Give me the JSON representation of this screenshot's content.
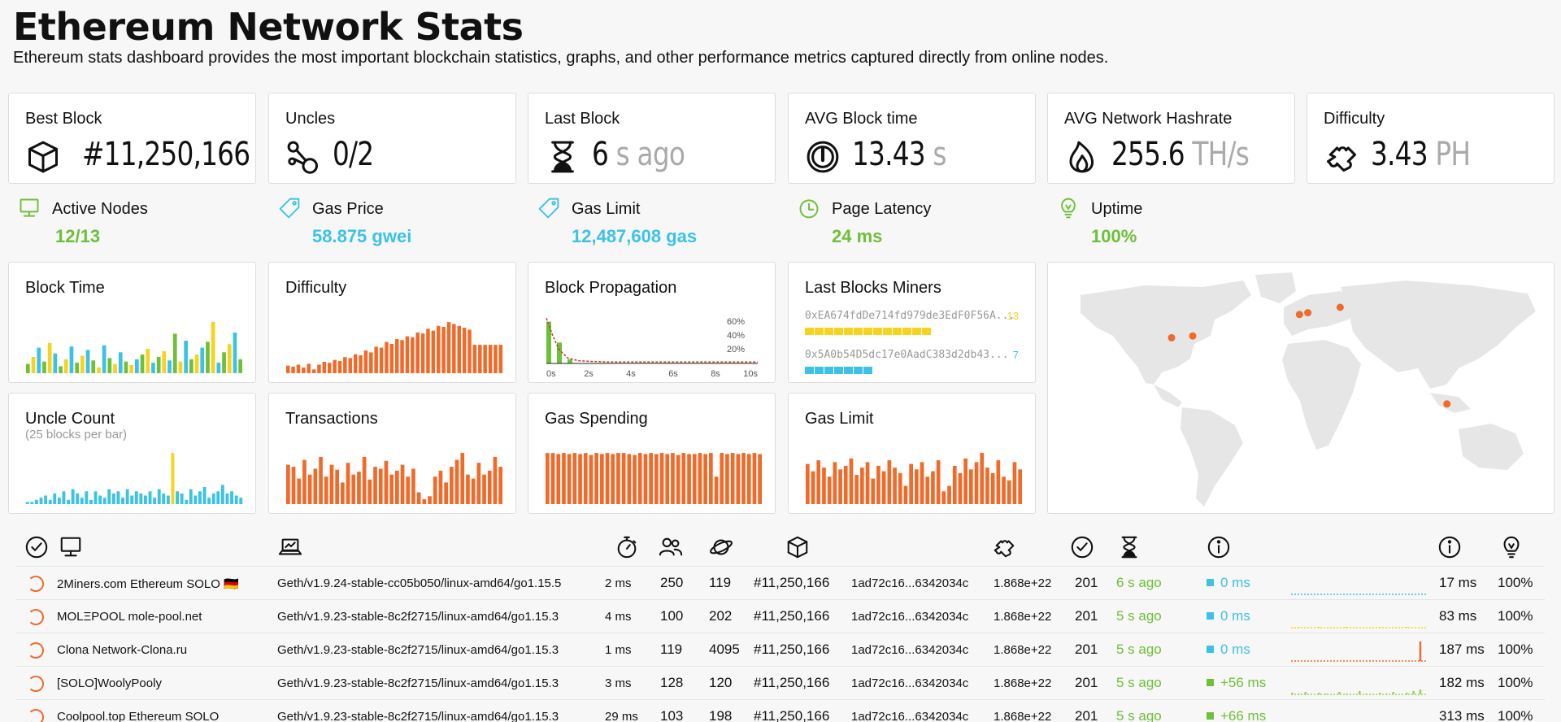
{
  "header": {
    "title": "Ethereum Network Stats",
    "subtitle": "Ethereum stats dashboard provides the most important blockchain statistics, graphs, and other performance metrics captured directly from online nodes."
  },
  "stats": [
    {
      "label": "Best Block",
      "value": "#11,250,166",
      "unit": "",
      "icon": "cube-icon"
    },
    {
      "label": "Uncles",
      "value": "0/2",
      "unit": "",
      "icon": "uncles-icon"
    },
    {
      "label": "Last Block",
      "value": "6",
      "unit": "s ago",
      "icon": "hourglass-icon"
    },
    {
      "label": "AVG Block time",
      "value": "13.43",
      "unit": "s",
      "icon": "gauge-icon"
    },
    {
      "label": "AVG Network Hashrate",
      "value": "255.6",
      "unit": "TH/s",
      "icon": "flame-icon"
    },
    {
      "label": "Difficulty",
      "value": "3.43",
      "unit": "PH",
      "icon": "puzzle-icon"
    }
  ],
  "info": [
    {
      "label": "Active Nodes",
      "value": "12/13",
      "color": "#6ebf3a",
      "icon": "monitor-icon"
    },
    {
      "label": "Gas Price",
      "value": "58.875 gwei",
      "color": "#3dc2e6",
      "icon": "tag-icon"
    },
    {
      "label": "Gas Limit",
      "value": "12,487,608 gas",
      "color": "#3dc2e6",
      "icon": "tag-icon"
    },
    {
      "label": "Page Latency",
      "value": "24 ms",
      "color": "#6ebf3a",
      "icon": "timer-icon"
    },
    {
      "label": "Uptime",
      "value": "100%",
      "color": "#6ebf3a",
      "icon": "bulb-icon"
    }
  ],
  "charts": {
    "block_time": {
      "title": "Block Time"
    },
    "difficulty": {
      "title": "Difficulty"
    },
    "block_propagation": {
      "title": "Block Propagation",
      "x_ticks": [
        "0s",
        "2s",
        "4s",
        "6s",
        "8s",
        "10s"
      ],
      "y_ticks": [
        "60%",
        "40%",
        "20%"
      ]
    },
    "uncle_count": {
      "title": "Uncle Count",
      "note": "(25 blocks per bar)"
    },
    "transactions": {
      "title": "Transactions"
    },
    "gas_spending": {
      "title": "Gas Spending"
    },
    "gas_limit": {
      "title": "Gas Limit"
    }
  },
  "chart_data": [
    {
      "type": "bar",
      "name_ref": "Block Time",
      "values": [
        8,
        14,
        22,
        10,
        26,
        17,
        6,
        12,
        23,
        9,
        15,
        20,
        11,
        5,
        24,
        13,
        8,
        18,
        10,
        7,
        12,
        16,
        21,
        9,
        14,
        19,
        11,
        34,
        10,
        28,
        12,
        16,
        22,
        27,
        44,
        9,
        18,
        25,
        35,
        12
      ],
      "colors": [
        "#6ebf3a",
        "#f5d31f",
        "#3dc2e6"
      ]
    },
    {
      "type": "bar",
      "name_ref": "Difficulty",
      "values": [
        8,
        7,
        9,
        6,
        10,
        4,
        9,
        12,
        11,
        14,
        13,
        17,
        16,
        20,
        19,
        24,
        22,
        28,
        27,
        33,
        31,
        36,
        35,
        39,
        38,
        43,
        42,
        47,
        45,
        50,
        49,
        54,
        52,
        50,
        48,
        46,
        30,
        30,
        30,
        30,
        30,
        30
      ],
      "colors": [
        "#f06a2a"
      ]
    },
    {
      "type": "line",
      "name_ref": "Block Propagation",
      "x": [
        0,
        0.3,
        0.6,
        1,
        1.5,
        2,
        3,
        4,
        5,
        6,
        7,
        8,
        9,
        10
      ],
      "y": [
        65,
        40,
        20,
        8,
        4,
        3,
        2,
        2,
        2,
        2,
        2,
        2,
        2,
        2
      ],
      "ylim": [
        0,
        70
      ],
      "xlim": [
        0,
        10
      ]
    },
    {
      "type": "bar",
      "name_ref": "Uncle Count",
      "values": [
        1,
        1,
        2,
        3,
        4,
        2,
        5,
        3,
        6,
        2,
        7,
        5,
        3,
        6,
        2,
        6,
        4,
        3,
        7,
        5,
        6,
        3,
        7,
        4,
        6,
        5,
        4,
        6,
        3,
        7,
        5,
        4,
        24,
        6,
        5,
        2,
        7,
        4,
        6,
        8,
        3,
        5,
        6,
        9,
        5,
        6,
        4,
        3
      ],
      "colors": [
        "#3dc2e6",
        "#f5d31f"
      ],
      "highlight_index": 32
    },
    {
      "type": "bar",
      "name_ref": "Transactions",
      "values": [
        40,
        38,
        26,
        45,
        30,
        36,
        48,
        28,
        40,
        35,
        22,
        42,
        30,
        33,
        48,
        25,
        38,
        36,
        44,
        30,
        34,
        40,
        28,
        36,
        12,
        5,
        8,
        28,
        34,
        22,
        38,
        45,
        52,
        30,
        26,
        42,
        30,
        34,
        48,
        38
      ],
      "colors": [
        "#f06a2a"
      ]
    },
    {
      "type": "bar",
      "name_ref": "Gas Spending",
      "values": [
        52,
        52,
        51,
        52,
        51,
        52,
        51,
        52,
        50,
        52,
        51,
        52,
        51,
        52,
        52,
        51,
        50,
        52,
        51,
        52,
        51,
        52,
        51,
        52,
        50,
        52,
        51,
        51,
        52,
        51,
        52,
        28,
        52,
        51,
        52,
        51,
        52,
        51,
        52,
        51
      ],
      "colors": [
        "#f06a2a"
      ]
    },
    {
      "type": "bar",
      "name_ref": "Gas Limit",
      "values": [
        44,
        36,
        48,
        40,
        30,
        46,
        38,
        42,
        50,
        32,
        40,
        46,
        28,
        42,
        36,
        48,
        40,
        34,
        20,
        44,
        38,
        46,
        30,
        36,
        48,
        14,
        20,
        42,
        34,
        50,
        38,
        46,
        56,
        40,
        34,
        48,
        30,
        26,
        46,
        38
      ],
      "colors": [
        "#f06a2a"
      ]
    }
  ],
  "miners": {
    "title": "Last Blocks Miners",
    "items": [
      {
        "address": "0xEA674fdDe714fd979de3EdF0F56A...",
        "count": "13",
        "color": "#f5d31f"
      },
      {
        "address": "0x5A0b54D5dc17e0AadC383d2db43...",
        "count": "7",
        "color": "#3dc2e6"
      }
    ]
  },
  "map": {
    "markers": [
      {
        "lon": -92,
        "lat": 38
      },
      {
        "lon": -77,
        "lat": 39
      },
      {
        "lon": -1,
        "lat": 51
      },
      {
        "lon": 5,
        "lat": 52
      },
      {
        "lon": 28,
        "lat": 55
      },
      {
        "lon": 104,
        "lat": 1
      }
    ]
  },
  "table": {
    "header_icons": [
      "check-circle-icon",
      "monitor-icon",
      "laptop-icon",
      "stopwatch-icon",
      "peers-icon",
      "planet-icon",
      "cube-icon",
      "puzzle-icon",
      "check-circle-icon",
      "hourglass-icon",
      "info-icon",
      "info-icon",
      "bulb-icon"
    ],
    "rows": [
      {
        "name": "2Miners.com Ethereum SOLO 🇩🇪",
        "client": "Geth/v1.9.24-stable-cc05b050/linux-amd64/go1.15.5",
        "latency": "2 ms",
        "peers": "250",
        "pending": "119",
        "block": "#11,250,166",
        "hash": "1ad72c16...6342034c",
        "difficulty": "1.868e+22",
        "txs": "201",
        "last": "6 s ago",
        "prop": "0 ms",
        "prop_color": "#3dc2e6",
        "avg": "17 ms",
        "uptime": "100%",
        "spark": [
          0,
          0,
          0,
          0,
          0,
          0,
          0,
          0,
          0,
          0,
          0,
          0,
          0,
          0,
          0,
          0,
          0,
          0,
          0,
          0
        ],
        "spark_color": "#3dc2e6"
      },
      {
        "name": "MOLΞPOOL mole-pool.net",
        "client": "Geth/v1.9.23-stable-8c2f2715/linux-amd64/go1.15.3",
        "latency": "4 ms",
        "peers": "100",
        "pending": "202",
        "block": "#11,250,166",
        "hash": "1ad72c16...6342034c",
        "difficulty": "1.868e+22",
        "txs": "201",
        "last": "5 s ago",
        "prop": "0 ms",
        "prop_color": "#3dc2e6",
        "avg": "83 ms",
        "uptime": "100%",
        "spark": [
          0,
          1,
          0,
          0,
          1,
          0,
          0,
          0,
          1,
          0,
          0,
          0,
          0,
          1,
          0,
          0,
          0,
          1,
          0,
          0
        ],
        "spark_color": "#f5d31f"
      },
      {
        "name": "Clona Network-Clona.ru",
        "client": "Geth/v1.9.23-stable-8c2f2715/linux-amd64/go1.15.3",
        "latency": "1 ms",
        "peers": "119",
        "pending": "4095",
        "block": "#11,250,166",
        "hash": "1ad72c16...6342034c",
        "difficulty": "1.868e+22",
        "txs": "201",
        "last": "5 s ago",
        "prop": "0 ms",
        "prop_color": "#3dc2e6",
        "avg": "187 ms",
        "uptime": "100%",
        "spark": [
          0,
          0,
          0,
          0,
          0,
          0,
          0,
          0,
          0,
          0,
          0,
          0,
          0,
          0,
          0,
          0,
          0,
          0,
          0,
          24
        ],
        "spark_color": "#f06a2a"
      },
      {
        "name": "[SOLO]WoolyPooly",
        "client": "Geth/v1.9.23-stable-8c2f2715/linux-amd64/go1.15.3",
        "latency": "3 ms",
        "peers": "128",
        "pending": "120",
        "block": "#11,250,166",
        "hash": "1ad72c16...6342034c",
        "difficulty": "1.868e+22",
        "txs": "201",
        "last": "5 s ago",
        "prop": "+56 ms",
        "prop_color": "#6ebf3a",
        "avg": "182 ms",
        "uptime": "100%",
        "spark": [
          2,
          1,
          3,
          0,
          2,
          1,
          0,
          3,
          1,
          0,
          4,
          1,
          0,
          2,
          1,
          3,
          0,
          2,
          4,
          6
        ],
        "spark_color": "#9ed05a"
      },
      {
        "name": "Coolpool.top Ethereum SOLO",
        "client": "Geth/v1.9.23-stable-8c2f2715/linux-amd64/go1.15.3",
        "latency": "29 ms",
        "peers": "103",
        "pending": "198",
        "block": "#11,250,166",
        "hash": "1ad72c16...6342034c",
        "difficulty": "1.868e+22",
        "txs": "201",
        "last": "5 s ago",
        "prop": "+66 ms",
        "prop_color": "#6ebf3a",
        "avg": "313 ms",
        "uptime": "100%",
        "spark": [
          1,
          0,
          2,
          1,
          0,
          3,
          1,
          0,
          2,
          1,
          0,
          2,
          4,
          1,
          0,
          2,
          1,
          3,
          5,
          2
        ],
        "spark_color": "#c5d04a"
      }
    ]
  }
}
